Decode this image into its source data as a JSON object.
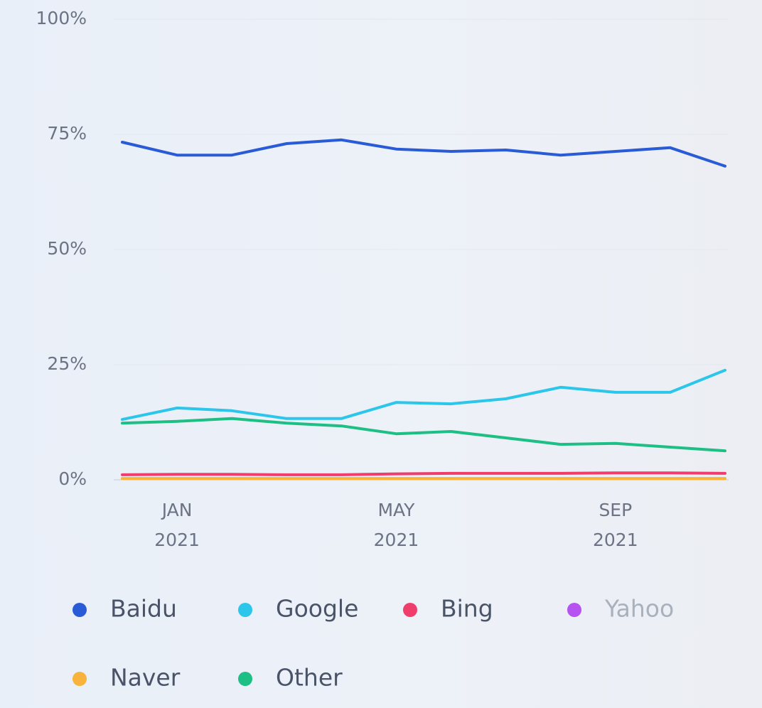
{
  "chart_data": {
    "type": "line",
    "categories": [
      null,
      "JAN\n2021",
      null,
      null,
      null,
      "MAY\n2021",
      null,
      null,
      null,
      "SEP\n2021",
      null,
      null
    ],
    "ylim": [
      0,
      100
    ],
    "yticks": [
      {
        "value": 0,
        "label": "0%"
      },
      {
        "value": 25,
        "label": "25%"
      },
      {
        "value": 50,
        "label": "50%"
      },
      {
        "value": 75,
        "label": "75%"
      },
      {
        "value": 100,
        "label": "100%"
      }
    ],
    "grid": true,
    "legend": "bottom",
    "series": [
      {
        "name": "Baidu",
        "color": "#2a5bd7",
        "values": [
          73.3,
          70.5,
          70.5,
          73.0,
          73.8,
          71.8,
          71.3,
          71.6,
          70.5,
          71.3,
          72.1,
          68.1
        ]
      },
      {
        "name": "Google",
        "color": "#2bc6ea",
        "values": [
          13.1,
          15.6,
          15.0,
          13.3,
          13.3,
          16.8,
          16.5,
          17.6,
          20.1,
          19.0,
          19.0,
          23.8
        ]
      },
      {
        "name": "Bing",
        "color": "#ef3e6c",
        "values": [
          1.1,
          1.2,
          1.2,
          1.1,
          1.1,
          1.3,
          1.4,
          1.4,
          1.4,
          1.5,
          1.5,
          1.4
        ]
      },
      {
        "name": "Yahoo",
        "color": "#b552f0",
        "hidden": true,
        "values": [
          null,
          null,
          null,
          null,
          null,
          null,
          null,
          null,
          null,
          null,
          null,
          null
        ]
      },
      {
        "name": "Naver",
        "color": "#f7b33b",
        "values": [
          0.3,
          0.3,
          0.3,
          0.3,
          0.3,
          0.3,
          0.3,
          0.3,
          0.3,
          0.3,
          0.3,
          0.3
        ]
      },
      {
        "name": "Other",
        "color": "#1dbf84",
        "values": [
          12.3,
          12.7,
          13.3,
          12.3,
          11.7,
          10.0,
          10.5,
          9.1,
          7.7,
          7.9,
          7.1,
          6.3
        ]
      }
    ]
  }
}
